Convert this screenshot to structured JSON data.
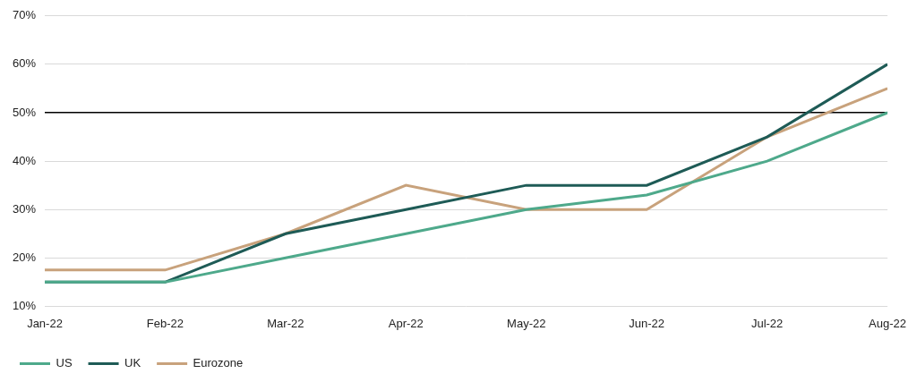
{
  "chart_data": {
    "type": "line",
    "categories": [
      "Jan-22",
      "Feb-22",
      "Mar-22",
      "Apr-22",
      "May-22",
      "Jun-22",
      "Jul-22",
      "Aug-22"
    ],
    "series": [
      {
        "name": "US",
        "color": "#4ea98b",
        "values": [
          15,
          15,
          20,
          25,
          30,
          33,
          40,
          50
        ]
      },
      {
        "name": "UK",
        "color": "#1e5b56",
        "values": [
          15,
          15,
          25,
          30,
          35,
          35,
          45,
          60
        ]
      },
      {
        "name": "Eurozone",
        "color": "#c8a27c",
        "values": [
          17.5,
          17.5,
          25,
          35,
          30,
          30,
          45,
          55
        ]
      }
    ],
    "ylim": [
      10,
      70
    ],
    "yticks": [
      {
        "value": 10,
        "label": "10%"
      },
      {
        "value": 20,
        "label": "20%"
      },
      {
        "value": 30,
        "label": "30%"
      },
      {
        "value": 40,
        "label": "40%"
      },
      {
        "value": 50,
        "label": "50%"
      },
      {
        "value": 60,
        "label": "60%"
      },
      {
        "value": 70,
        "label": "70%"
      }
    ],
    "reference_line": 50,
    "grid": true,
    "legend": "bottom-left"
  }
}
